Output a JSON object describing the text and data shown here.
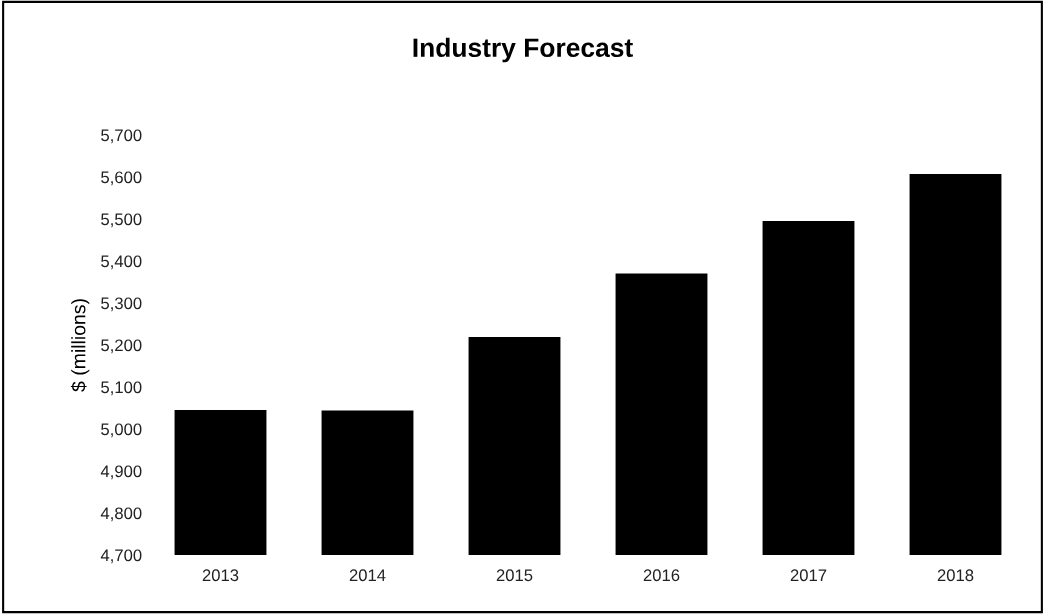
{
  "chart_data": {
    "type": "bar",
    "title": "Industry Forecast",
    "ylabel": "$ (millions)",
    "categories": [
      "2013",
      "2014",
      "2015",
      "2016",
      "2017",
      "2018"
    ],
    "values": [
      5045,
      5044,
      5219,
      5370,
      5495,
      5607
    ],
    "color": "#000000",
    "ylim": [
      4700,
      5700
    ],
    "yticks": [
      {
        "value": 4700,
        "label": "4,700"
      },
      {
        "value": 4800,
        "label": "4,800"
      },
      {
        "value": 4900,
        "label": "4,900"
      },
      {
        "value": 5000,
        "label": "5,000"
      },
      {
        "value": 5100,
        "label": "5,100"
      },
      {
        "value": 5200,
        "label": "5,200"
      },
      {
        "value": 5300,
        "label": "5,300"
      },
      {
        "value": 5400,
        "label": "5,400"
      },
      {
        "value": 5500,
        "label": "5,500"
      },
      {
        "value": 5600,
        "label": "5,600"
      },
      {
        "value": 5700,
        "label": "5,700"
      }
    ]
  }
}
